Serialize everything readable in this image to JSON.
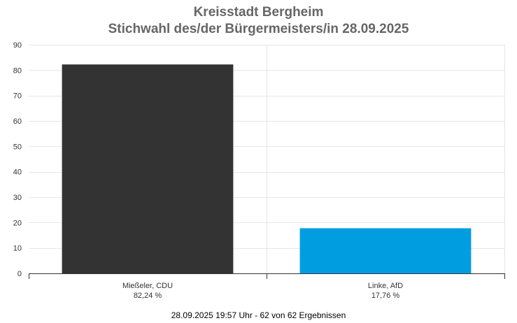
{
  "title": "Kreisstadt Bergheim",
  "subtitle": "Stichwahl des/der Bürgermeisters/in 28.09.2025",
  "footer": "28.09.2025 19:57 Uhr - 62 von 62 Ergebnissen",
  "chart_data": {
    "type": "bar",
    "title": "Kreisstadt Bergheim",
    "subtitle": "Stichwahl des/der Bürgermeisters/in 28.09.2025",
    "categories": [
      "Mießeler, CDU",
      "Linke, AfD"
    ],
    "category_sublabels": [
      "82,24 %",
      "17,76 %"
    ],
    "values": [
      82.24,
      17.76
    ],
    "colors": [
      "#333333",
      "#009de0"
    ],
    "ylim": [
      0,
      90
    ],
    "yticks": [
      0,
      10,
      20,
      30,
      40,
      50,
      60,
      70,
      80,
      90
    ],
    "grid": true,
    "xlabel": "",
    "ylabel": ""
  }
}
